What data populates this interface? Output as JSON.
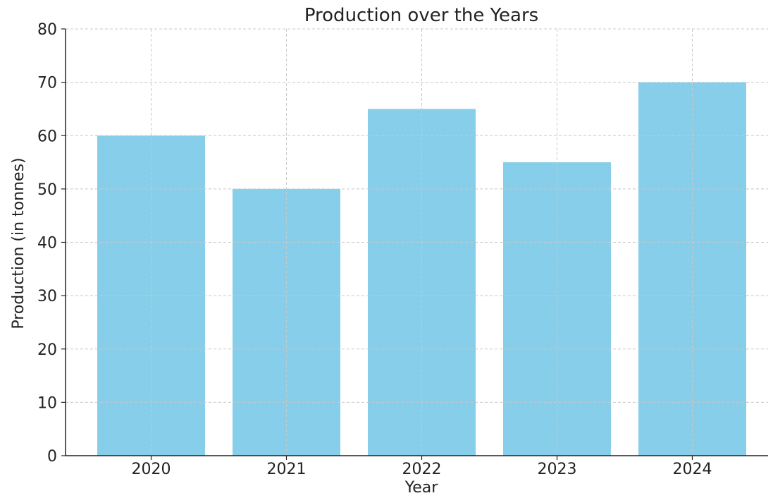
{
  "chart_data": {
    "type": "bar",
    "title": "Production over the Years",
    "xlabel": "Year",
    "ylabel": "Production (in tonnes)",
    "categories": [
      "2020",
      "2021",
      "2022",
      "2023",
      "2024"
    ],
    "values": [
      60,
      50,
      65,
      55,
      70
    ],
    "ylim": [
      0,
      80
    ],
    "yticks": [
      0,
      10,
      20,
      30,
      40,
      50,
      60,
      70,
      80
    ],
    "grid": true,
    "bar_color": "#87ceeb"
  }
}
